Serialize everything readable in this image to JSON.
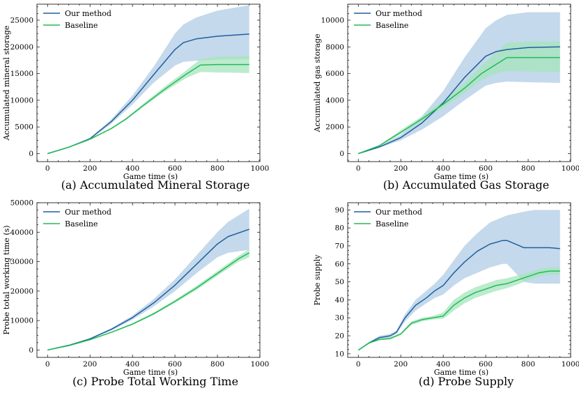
{
  "colors": {
    "our_method": "#1f5fa0",
    "our_method_band": "#b5cfe6",
    "baseline": "#22bb55",
    "baseline_band": "#a6e4bd"
  },
  "legend": {
    "our_method": "Our method",
    "baseline": "Baseline"
  },
  "chart_data": [
    {
      "id": "a",
      "type": "line",
      "caption": "(a) Accumulated Mineral Storage",
      "xlabel": "Game time (s)",
      "ylabel": "Accumulated mineral storage",
      "xlim": [
        -50,
        1000
      ],
      "ylim": [
        -1500,
        28000
      ],
      "xticks": [
        0,
        200,
        400,
        600,
        800,
        1000
      ],
      "yticks": [
        0,
        5000,
        10000,
        15000,
        20000,
        25000
      ],
      "series": [
        {
          "name": "Our method",
          "key": "our_method",
          "x": [
            0,
            100,
            200,
            300,
            400,
            500,
            600,
            640,
            700,
            800,
            950
          ],
          "values": [
            0,
            1200,
            2800,
            6000,
            10000,
            14800,
            19500,
            20800,
            21500,
            22000,
            22400
          ],
          "band_low": [
            0,
            1150,
            2650,
            5600,
            9200,
            13300,
            16500,
            17200,
            17400,
            17600,
            17700
          ],
          "band_high": [
            0,
            1250,
            2950,
            6400,
            10900,
            16300,
            22500,
            24200,
            25500,
            26800,
            27800
          ]
        },
        {
          "name": "Baseline",
          "key": "baseline",
          "x": [
            0,
            100,
            200,
            300,
            370,
            450,
            550,
            650,
            720,
            800,
            950
          ],
          "values": [
            0,
            1200,
            2700,
            4700,
            6500,
            9000,
            12000,
            14800,
            16600,
            16700,
            16700
          ],
          "band_low": [
            0,
            1150,
            2600,
            4550,
            6300,
            8700,
            11600,
            14100,
            15300,
            15200,
            15100
          ],
          "band_high": [
            0,
            1250,
            2800,
            4850,
            6700,
            9300,
            12500,
            15500,
            17700,
            18200,
            18300
          ]
        }
      ]
    },
    {
      "id": "b",
      "type": "line",
      "caption": "(b) Accumulated Gas Storage",
      "xlabel": "Game time (s)",
      "ylabel": "Accumulated gas storage",
      "xlim": [
        -50,
        1000
      ],
      "ylim": [
        -600,
        11200
      ],
      "xticks": [
        0,
        200,
        400,
        600,
        800,
        1000
      ],
      "yticks": [
        0,
        2000,
        4000,
        6000,
        8000,
        10000
      ],
      "series": [
        {
          "name": "Our method",
          "key": "our_method",
          "x": [
            0,
            100,
            200,
            300,
            400,
            500,
            600,
            650,
            700,
            800,
            950
          ],
          "values": [
            0,
            500,
            1200,
            2300,
            3800,
            5700,
            7300,
            7650,
            7800,
            7950,
            8000
          ],
          "band_low": [
            0,
            450,
            1000,
            1800,
            2800,
            4000,
            5100,
            5300,
            5400,
            5350,
            5300
          ],
          "band_high": [
            0,
            550,
            1400,
            2800,
            4700,
            7200,
            9400,
            10000,
            10400,
            10600,
            10600
          ]
        },
        {
          "name": "Baseline",
          "key": "baseline",
          "x": [
            0,
            100,
            200,
            300,
            400,
            500,
            580,
            650,
            700,
            800,
            950
          ],
          "values": [
            0,
            600,
            1600,
            2600,
            3700,
            4900,
            6000,
            6700,
            7200,
            7200,
            7200
          ],
          "band_low": [
            0,
            550,
            1450,
            2450,
            3450,
            4550,
            5500,
            6000,
            6200,
            6150,
            6100
          ],
          "band_high": [
            0,
            650,
            1750,
            2800,
            3950,
            5300,
            6600,
            7600,
            8300,
            8400,
            8400
          ]
        }
      ]
    },
    {
      "id": "c",
      "type": "line",
      "caption": "(c) Probe Total Working Time",
      "xlabel": "Game time (s)",
      "ylabel": "Probe total working time (s)",
      "xlim": [
        -50,
        1000
      ],
      "ylim": [
        -2500,
        50000
      ],
      "xticks": [
        0,
        200,
        400,
        600,
        800,
        1000
      ],
      "yticks": [
        0,
        10000,
        20000,
        30000,
        40000,
        50000
      ],
      "series": [
        {
          "name": "Our method",
          "key": "our_method",
          "x": [
            0,
            100,
            200,
            300,
            400,
            500,
            600,
            700,
            800,
            850,
            950
          ],
          "values": [
            0,
            1600,
            3800,
            7000,
            11000,
            16000,
            22000,
            29000,
            36000,
            38500,
            41000
          ],
          "band_low": [
            0,
            1550,
            3600,
            6600,
            10300,
            14800,
            20000,
            26000,
            31500,
            33000,
            34000
          ],
          "band_high": [
            0,
            1650,
            4000,
            7400,
            11700,
            17300,
            24000,
            32000,
            40000,
            43500,
            48000
          ]
        },
        {
          "name": "Baseline",
          "key": "baseline",
          "x": [
            0,
            100,
            200,
            300,
            400,
            500,
            600,
            700,
            800,
            900,
            950
          ],
          "values": [
            0,
            1500,
            3500,
            6000,
            8800,
            12300,
            16500,
            21000,
            26000,
            31000,
            33000
          ],
          "band_low": [
            0,
            1450,
            3400,
            5800,
            8500,
            11900,
            16000,
            20300,
            25200,
            30000,
            31500
          ],
          "band_high": [
            0,
            1550,
            3600,
            6200,
            9100,
            12700,
            17000,
            21700,
            26800,
            32000,
            34200
          ]
        }
      ]
    },
    {
      "id": "d",
      "type": "line",
      "caption": "(d) Probe Supply",
      "xlabel": "Game time (s)",
      "ylabel": "Probe supply",
      "xlim": [
        -50,
        1000
      ],
      "ylim": [
        8,
        94
      ],
      "xticks": [
        0,
        200,
        400,
        600,
        800,
        1000
      ],
      "yticks": [
        10,
        20,
        30,
        40,
        50,
        60,
        70,
        80,
        90
      ],
      "series": [
        {
          "name": "Our method",
          "key": "our_method",
          "x": [
            0,
            50,
            100,
            150,
            180,
            220,
            270,
            320,
            360,
            400,
            450,
            500,
            560,
            620,
            680,
            700,
            740,
            780,
            830,
            900,
            950
          ],
          "values": [
            12,
            16,
            19,
            20,
            22,
            30,
            37,
            41,
            45,
            48,
            55,
            61,
            67,
            71,
            73,
            73,
            71,
            69,
            69,
            69,
            68.5
          ],
          "band_low": [
            12,
            15.5,
            18,
            19,
            21,
            28,
            34,
            38,
            41,
            43,
            48,
            52,
            55,
            58,
            60,
            60,
            55,
            50,
            49,
            49,
            49
          ],
          "band_high": [
            12,
            16.5,
            20,
            21,
            23,
            32,
            40,
            45,
            49,
            54,
            62,
            70,
            77,
            83,
            86,
            87,
            88,
            89,
            90,
            90,
            90
          ]
        },
        {
          "name": "Baseline",
          "key": "baseline",
          "x": [
            0,
            50,
            100,
            150,
            200,
            250,
            300,
            350,
            400,
            450,
            500,
            550,
            600,
            650,
            700,
            750,
            800,
            850,
            900,
            950
          ],
          "values": [
            12,
            16,
            18,
            18.5,
            21,
            27,
            29,
            30,
            31,
            37,
            41,
            44,
            46,
            48,
            49,
            51,
            53,
            55,
            56,
            56
          ],
          "band_low": [
            12,
            15.5,
            17.5,
            18,
            20.5,
            26,
            28,
            29,
            29.5,
            34,
            38,
            41,
            43,
            45,
            46.5,
            48.5,
            51,
            53,
            54,
            54
          ],
          "band_high": [
            12,
            16.5,
            18.5,
            19,
            21.5,
            28,
            30,
            31,
            33,
            40,
            44,
            47,
            49,
            51,
            52,
            53.5,
            55,
            57,
            58,
            58
          ]
        }
      ]
    }
  ]
}
